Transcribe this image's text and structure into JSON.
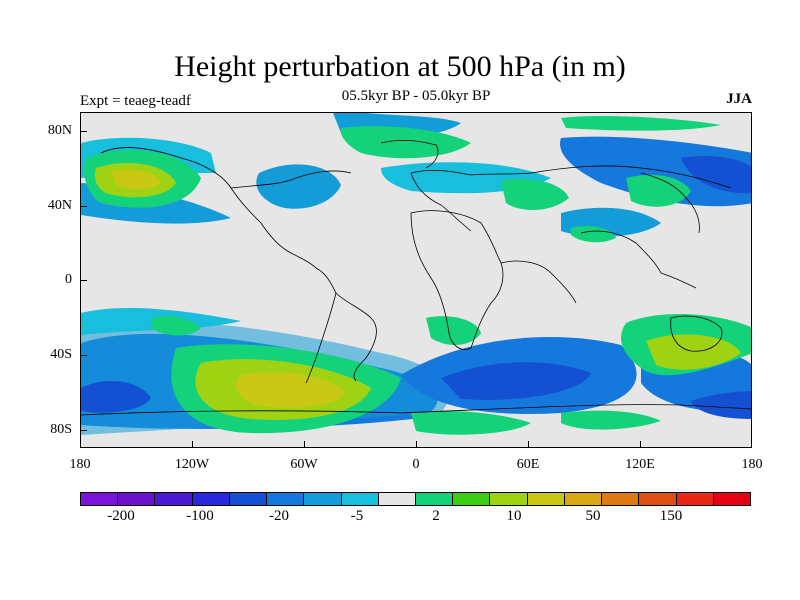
{
  "header": {
    "title": "Height perturbation at 500 hPa (in m)",
    "subtitle": "05.5kyr BP - 05.0kyr BP",
    "left_label": "Expt = teaeg-teadf",
    "right_label": "JJA"
  },
  "map": {
    "projection": "cylindrical equidistant",
    "background_color": "#e6e6e6",
    "lat_labels": [
      "80N",
      "40N",
      "0",
      "40S",
      "80S"
    ],
    "lon_labels": [
      "180",
      "120W",
      "60W",
      "0",
      "60E",
      "120E",
      "180"
    ]
  },
  "colorbar": {
    "colors": [
      "#7a14d8",
      "#6a12cc",
      "#4a1ad0",
      "#2a28dc",
      "#1450d2",
      "#1478dc",
      "#149cd8",
      "#18bedc",
      "#e6e6e6",
      "#14d27a",
      "#3ccd14",
      "#a0d214",
      "#c8c814",
      "#d7a814",
      "#dc7a14",
      "#dc5014",
      "#e62814",
      "#e60014"
    ],
    "labels": [
      "-200",
      "-100",
      "-20",
      "-5",
      "2",
      "10",
      "50",
      "150"
    ]
  }
}
